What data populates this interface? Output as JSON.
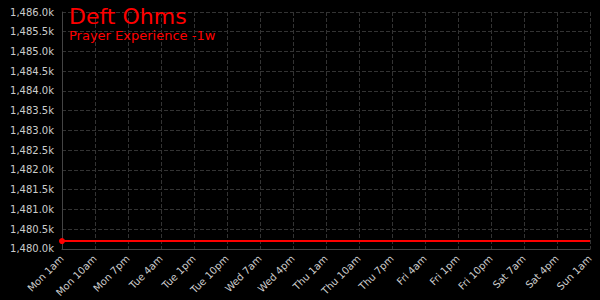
{
  "chart_data": {
    "type": "line",
    "title": "Deft Ohms",
    "subtitle": "Prayer Experience -1w",
    "categories": [
      "Mon 1am",
      "Mon 10am",
      "Mon 7pm",
      "Tue 4am",
      "Tue 1pm",
      "Tue 10pm",
      "Wed 7am",
      "Wed 4pm",
      "Thu 1am",
      "Thu 10am",
      "Thu 7pm",
      "Fri 4am",
      "Fri 1pm",
      "Fri 10pm",
      "Sat 7am",
      "Sat 4pm",
      "Sun 1am"
    ],
    "values": [
      1480200,
      1480200,
      1480200,
      1480200,
      1480200,
      1480200,
      1480200,
      1480200,
      1480200,
      1480200,
      1480200,
      1480200,
      1480200,
      1480200,
      1480200,
      1480200,
      1480200
    ],
    "color": "#ff0000",
    "marker": "circle",
    "ylim": [
      1480000,
      1486000
    ],
    "yticks": [
      {
        "value": 1480000,
        "label": "1,480.0k"
      },
      {
        "value": 1480500,
        "label": "1,480.5k"
      },
      {
        "value": 1481000,
        "label": "1,481.0k"
      },
      {
        "value": 1481500,
        "label": "1,481.5k"
      },
      {
        "value": 1482000,
        "label": "1,482.0k"
      },
      {
        "value": 1482500,
        "label": "1,482.5k"
      },
      {
        "value": 1483000,
        "label": "1,483.0k"
      },
      {
        "value": 1483500,
        "label": "1,483.5k"
      },
      {
        "value": 1484000,
        "label": "1,484.0k"
      },
      {
        "value": 1484500,
        "label": "1,484.5k"
      },
      {
        "value": 1485000,
        "label": "1,485.0k"
      },
      {
        "value": 1485500,
        "label": "1,485.5k"
      },
      {
        "value": 1486000,
        "label": "1,486.0k"
      }
    ],
    "grid": true
  }
}
